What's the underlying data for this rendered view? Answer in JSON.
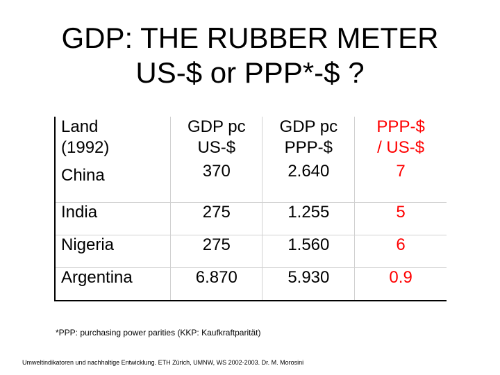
{
  "title": {
    "line1": "GDP: THE RUBBER METER",
    "line2": "US-$ or PPP*-$ ?"
  },
  "table": {
    "headers": [
      [
        "Land",
        "(1992)"
      ],
      [
        "GDP pc",
        "US-$"
      ],
      [
        "GDP pc",
        "PPP-$"
      ],
      [
        "PPP-$",
        "/ US-$"
      ]
    ],
    "rows": [
      {
        "land": "China",
        "gdp_us": "370",
        "gdp_ppp": "2.640",
        "ratio": "7"
      },
      {
        "land": "India",
        "gdp_us": "275",
        "gdp_ppp": "1.255",
        "ratio": "5"
      },
      {
        "land": "Nigeria",
        "gdp_us": "275",
        "gdp_ppp": "1.560",
        "ratio": "6"
      },
      {
        "land": "Argentina",
        "gdp_us": "6.870",
        "gdp_ppp": "5.930",
        "ratio": "0.9"
      }
    ],
    "ratio_color": "#ff0000"
  },
  "footnote": "*PPP: purchasing power parities (KKP: Kaufkraftparität)",
  "credit": "Umweltindikatoren und nachhaltige Entwicklung. ETH Zürich, UMNW, WS 2002-2003. Dr. M. Morosini"
}
